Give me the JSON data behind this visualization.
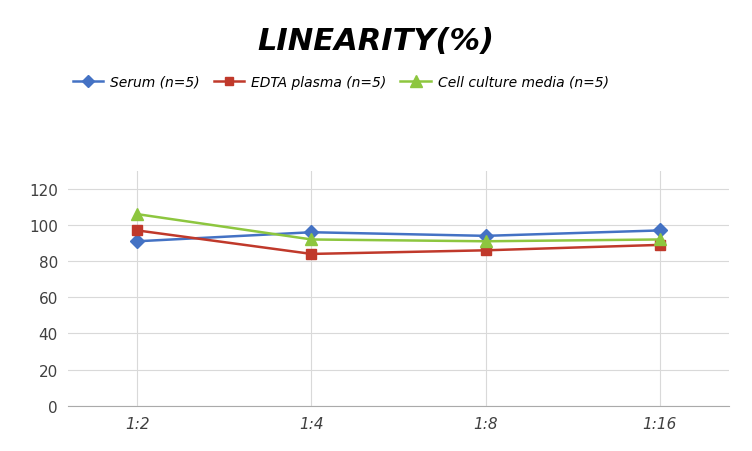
{
  "title": "LINEARITY(%)",
  "x_labels": [
    "1:2",
    "1:4",
    "1:8",
    "1:16"
  ],
  "x_positions": [
    0,
    1,
    2,
    3
  ],
  "series": [
    {
      "label": "Serum (n=5)",
      "values": [
        91,
        96,
        94,
        97
      ],
      "color": "#4472C4",
      "marker": "D",
      "markersize": 7,
      "linewidth": 1.8
    },
    {
      "label": "EDTA plasma (n=5)",
      "values": [
        97,
        84,
        86,
        89
      ],
      "color": "#C0392B",
      "marker": "s",
      "markersize": 7,
      "linewidth": 1.8
    },
    {
      "label": "Cell culture media (n=5)",
      "values": [
        106,
        92,
        91,
        92
      ],
      "color": "#8DC63F",
      "marker": "^",
      "markersize": 9,
      "linewidth": 1.8
    }
  ],
  "ylim": [
    0,
    130
  ],
  "yticks": [
    0,
    20,
    40,
    60,
    80,
    100,
    120
  ],
  "xlim": [
    -0.4,
    3.4
  ],
  "grid_color": "#D9D9D9",
  "background_color": "#FFFFFF",
  "title_fontsize": 22,
  "legend_fontsize": 10,
  "tick_fontsize": 11,
  "axis_label_color": "#404040"
}
